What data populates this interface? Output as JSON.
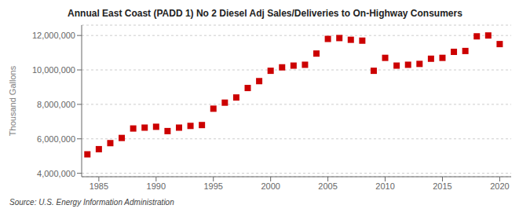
{
  "chart_data": {
    "type": "scatter",
    "title": "Annual East Coast (PADD 1) No 2 Diesel Adj Sales/Deliveries to On-Highway Consumers",
    "ylabel": "Thousand Gallons",
    "annotations": [
      "Source: U.S. Energy Information Administration"
    ],
    "x": [
      1984,
      1985,
      1986,
      1987,
      1988,
      1989,
      1990,
      1991,
      1992,
      1993,
      1994,
      1995,
      1996,
      1997,
      1998,
      1999,
      2000,
      2001,
      2002,
      2003,
      2004,
      2005,
      2006,
      2007,
      2008,
      2009,
      2010,
      2011,
      2012,
      2013,
      2014,
      2015,
      2016,
      2017,
      2018,
      2019,
      2020
    ],
    "values": [
      5100000,
      5400000,
      5750000,
      6050000,
      6600000,
      6650000,
      6700000,
      6450000,
      6650000,
      6750000,
      6800000,
      7750000,
      8100000,
      8400000,
      8950000,
      9350000,
      9950000,
      10150000,
      10250000,
      10300000,
      10950000,
      11800000,
      11850000,
      11750000,
      11700000,
      9950000,
      10700000,
      10250000,
      10300000,
      10350000,
      10650000,
      10700000,
      11050000,
      11100000,
      11950000,
      12000000,
      11500000
    ],
    "color": "#cc0000",
    "marker": "square",
    "xlim": [
      1983.5,
      2021
    ],
    "ylim": [
      3800000,
      12600000
    ],
    "xticks": [
      1985,
      1990,
      1995,
      2000,
      2005,
      2010,
      2015,
      2020
    ],
    "yticks": [
      {
        "value": 4000000,
        "label": "4,000,000"
      },
      {
        "value": 6000000,
        "label": "6,000,000"
      },
      {
        "value": 8000000,
        "label": "8,000,000"
      },
      {
        "value": 10000000,
        "label": "10,000,000"
      },
      {
        "value": 12000000,
        "label": "12,000,000"
      }
    ],
    "grid": "y"
  }
}
